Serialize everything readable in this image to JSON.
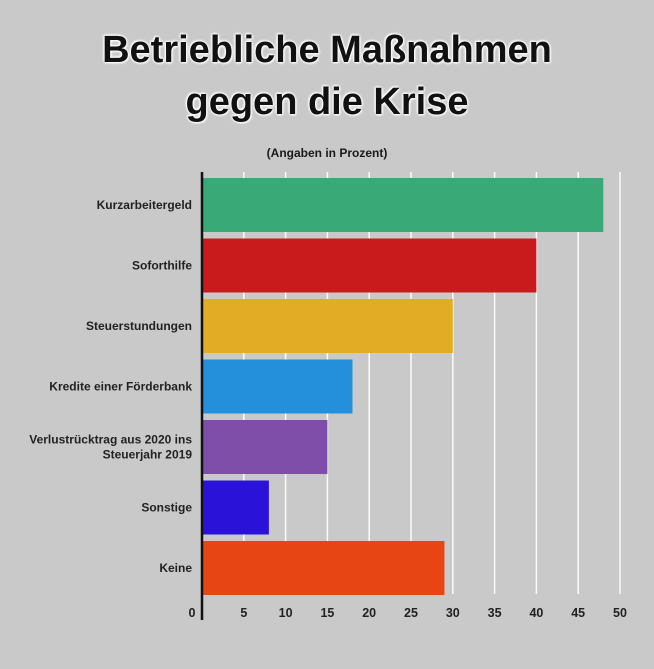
{
  "chart_data": {
    "type": "bar",
    "orientation": "horizontal",
    "title": [
      "Betriebliche Maßnahmen",
      "gegen die Krise"
    ],
    "subtitle": "(Angaben in Prozent)",
    "categories": [
      [
        "Kurzarbeitergeld"
      ],
      [
        "Soforthilfe"
      ],
      [
        "Steuerstundungen"
      ],
      [
        "Kredite einer Förderbank"
      ],
      [
        "Verlustrücktrag aus 2020 ins",
        "Steuerjahr 2019"
      ],
      [
        "Sonstige"
      ],
      [
        "Keine"
      ]
    ],
    "values": [
      48,
      40,
      30,
      18,
      15,
      8,
      29
    ],
    "colors": [
      "#3aa978",
      "#c91b1b",
      "#e2ac24",
      "#2490dc",
      "#7e4ea8",
      "#2b12d9",
      "#e74513"
    ],
    "xticks": [
      0,
      5,
      10,
      15,
      20,
      25,
      30,
      35,
      40,
      45,
      50
    ],
    "xlim": [
      0,
      50
    ],
    "grid": true
  }
}
